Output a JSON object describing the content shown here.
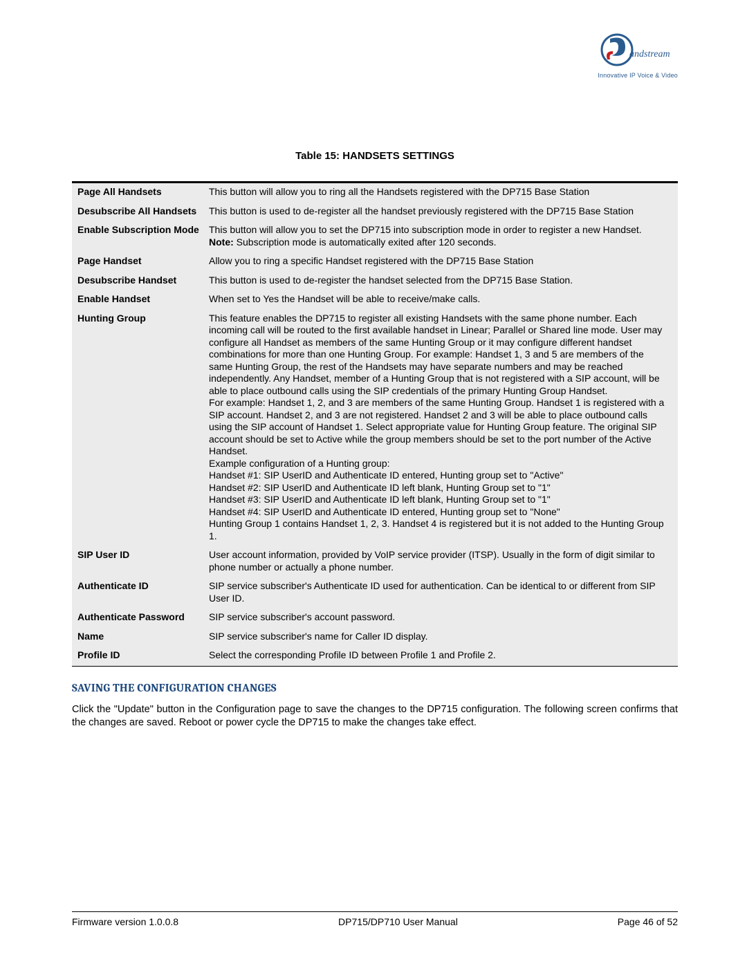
{
  "logo": {
    "brand": "Grandstream",
    "tagline": "Innovative IP Voice & Video",
    "colors": {
      "blue": "#2a5b8f",
      "red": "#c81e1e",
      "text": "#2a5b8f"
    }
  },
  "table": {
    "title": "Table 15: HANDSETS SETTINGS",
    "background": "#ebebeb",
    "border_color": "#000000",
    "label_fontweight": "bold",
    "fontsize": 14,
    "rows": [
      {
        "label": "Page All Handsets",
        "desc": "This button will allow you to ring all the Handsets registered with the DP715 Base Station"
      },
      {
        "label": "Desubscribe All Handsets",
        "desc": "This button is used to de-register all the handset previously registered with the DP715 Base Station"
      },
      {
        "label": "Enable Subscription Mode",
        "desc": "This button will allow you to set the DP715 into subscription mode in order to register a new Handset.",
        "note": "Subscription mode is automatically exited after 120 seconds."
      },
      {
        "label": "Page Handset",
        "desc": "Allow you to ring a specific Handset registered with the DP715 Base Station"
      },
      {
        "label": "Desubscribe Handset",
        "desc": "This button is used to de-register the handset selected from the DP715 Base Station."
      },
      {
        "label": "Enable Handset",
        "desc": "When set to Yes the Handset will be able to receive/make calls."
      },
      {
        "label": "Hunting Group",
        "desc_lines": [
          "This feature enables the DP715 to register all existing Handsets with the same phone number. Each incoming call will be routed to the first available handset in Linear; Parallel or Shared line mode. User may configure all Handset as members of the same Hunting Group or it may configure different handset combinations for more than one Hunting Group. For example: Handset 1, 3 and 5 are members of the same Hunting Group, the rest of the Handsets may have separate numbers and may be reached independently. Any Handset, member of a Hunting Group that is not registered with a SIP account, will be able to place outbound calls using the SIP credentials of the primary Hunting Group Handset.",
          "For example: Handset 1,  2, and 3 are members of the same Hunting Group. Handset 1 is registered with a SIP account. Handset 2, and 3 are not registered. Handset 2 and 3 will be able to place outbound calls using the SIP account of Handset 1. Select appropriate value for Hunting Group feature. The original SIP account should be set to Active while the group members should be set to the port number of the Active Handset.",
          "Example configuration of a  Hunting group:",
          "Handset #1: SIP UserID and Authenticate ID entered, Hunting group set to \"Active\"",
          "Handset #2: SIP UserID and Authenticate ID left blank, Hunting Group set to \"1\"",
          "Handset #3: SIP UserID and Authenticate ID left blank, Hunting Group set to \"1\"",
          "Handset #4: SIP UserID and Authenticate ID entered, Hunting group set to \"None\"",
          "Hunting Group 1 contains Handset 1, 2, 3. Handset 4 is registered but it is not added to the Hunting Group 1."
        ]
      },
      {
        "label": "SIP User ID",
        "desc": "User account information, provided by VoIP service provider (ITSP). Usually in the form of digit similar to phone number or actually a phone number."
      },
      {
        "label": "Authenticate ID",
        "desc": "SIP service subscriber's Authenticate ID used for authentication. Can be identical to or different from SIP User ID."
      },
      {
        "label": "Authenticate Password",
        "desc": "SIP service subscriber's account password."
      },
      {
        "label": "Name",
        "desc": "SIP service subscriber's name for Caller ID display."
      },
      {
        "label": "Profile ID",
        "desc": "Select the corresponding Profile ID between Profile 1 and Profile 2."
      }
    ],
    "note_label": "Note:"
  },
  "section": {
    "heading": "SAVING THE CONFIGURATION CHANGES",
    "heading_color": "#1f497d",
    "body": "Click the \"Update\" button in the Configuration page to save the changes to the DP715 configuration. The following screen confirms that the changes are saved.  Reboot or power cycle the DP715 to make the changes take effect."
  },
  "footer": {
    "left": "Firmware version 1.0.0.8",
    "center": "DP715/DP710 User Manual",
    "right": "Page 46 of 52"
  }
}
